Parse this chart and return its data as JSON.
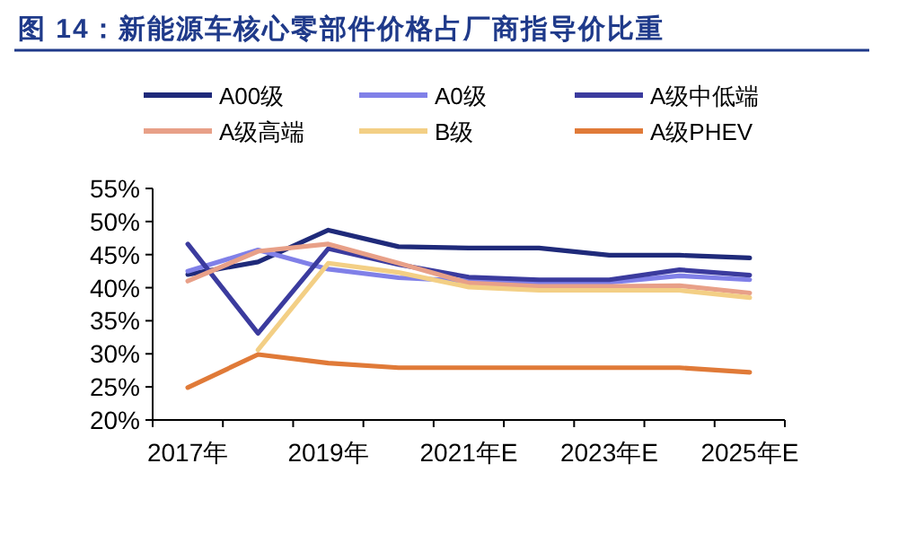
{
  "chart_data": {
    "type": "line",
    "title": "图 14：新能源车核心零部件价格占厂商指导价比重",
    "categories": [
      "2017年",
      null,
      "2019年",
      null,
      "2021年E",
      null,
      "2023年E",
      null,
      "2025年E"
    ],
    "series": [
      {
        "name": "A00级",
        "color": "#1f2a7a",
        "values": [
          42,
          43.9,
          48.7,
          46.2,
          46,
          46,
          44.9,
          44.9,
          44.5
        ]
      },
      {
        "name": "A0级",
        "color": "#8080e8",
        "values": [
          42.5,
          45.7,
          42.8,
          41.5,
          41,
          40.8,
          40.8,
          41.8,
          41.2
        ]
      },
      {
        "name": "A级中低端",
        "color": "#3b3b9e",
        "values": [
          46.6,
          33.1,
          45.9,
          43.5,
          41.6,
          41.2,
          41.2,
          42.7,
          41.9
        ]
      },
      {
        "name": "A级高端",
        "color": "#e8a088",
        "values": [
          41,
          45.5,
          46.6,
          43.7,
          40.7,
          40.2,
          40.2,
          40.3,
          39.2
        ]
      },
      {
        "name": "B级",
        "color": "#f3cf85",
        "values": [
          null,
          30.6,
          43.7,
          42.3,
          40.1,
          39.6,
          39.6,
          39.6,
          38.5
        ]
      },
      {
        "name": "A级PHEV",
        "color": "#e07a38",
        "values": [
          24.9,
          29.9,
          28.6,
          27.9,
          27.9,
          27.9,
          27.9,
          27.9,
          27.2
        ]
      }
    ],
    "ylim": [
      20,
      55
    ],
    "yticks": [
      {
        "value": 20,
        "label": "20%"
      },
      {
        "value": 25,
        "label": "25%"
      },
      {
        "value": 30,
        "label": "30%"
      },
      {
        "value": 35,
        "label": "35%"
      },
      {
        "value": 40,
        "label": "40%"
      },
      {
        "value": 45,
        "label": "45%"
      },
      {
        "value": 50,
        "label": "50%"
      },
      {
        "value": 55,
        "label": "55%"
      }
    ],
    "legend": "top",
    "grid": false,
    "marker": "none",
    "line_style": "solid"
  }
}
